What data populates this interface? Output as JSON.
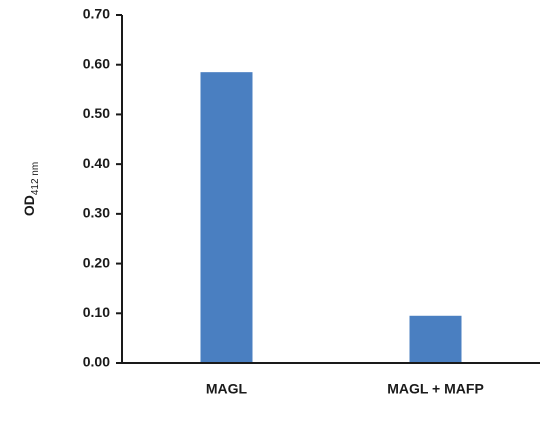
{
  "chart_data": {
    "type": "bar",
    "y_label": "OD",
    "y_label_subscript": "412 nm",
    "categories": [
      "MAGL",
      "MAGL + MAFP"
    ],
    "values": [
      0.585,
      0.095
    ],
    "color": "#4a7fc1",
    "ylim": [
      0,
      0.7
    ],
    "yticks": [
      {
        "value": 0,
        "label": "0.00"
      },
      {
        "value": 0.1,
        "label": "0.10"
      },
      {
        "value": 0.2,
        "label": "0.20"
      },
      {
        "value": 0.3,
        "label": "0.30"
      },
      {
        "value": 0.4,
        "label": "0.40"
      },
      {
        "value": 0.5,
        "label": "0.50"
      },
      {
        "value": 0.6,
        "label": "0.60"
      },
      {
        "value": 0.7,
        "label": "0.70"
      }
    ],
    "grid": false
  }
}
